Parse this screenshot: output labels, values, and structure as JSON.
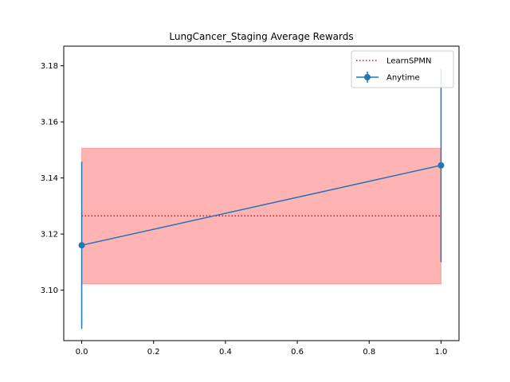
{
  "chart_data": {
    "type": "line",
    "title": "LungCancer_Staging Average Rewards",
    "xlabel": "",
    "ylabel": "",
    "xlim": [
      -0.05,
      1.05
    ],
    "ylim": [
      3.082,
      3.187
    ],
    "x_ticks": [
      "0.0",
      "0.2",
      "0.4",
      "0.6",
      "0.8",
      "1.0"
    ],
    "y_ticks": [
      "3.10",
      "3.12",
      "3.14",
      "3.16",
      "3.18"
    ],
    "legend_position": "top-right",
    "series": [
      {
        "name": "Anytime",
        "color": "#1f77b4",
        "x": [
          0.0,
          1.0
        ],
        "y": [
          3.116,
          3.1445
        ],
        "yerr": [
          0.0298,
          0.0345
        ]
      }
    ],
    "reference": {
      "name": "LearnSPMN",
      "color": "#ff0000",
      "style": "dotted",
      "x_range": [
        0.0,
        1.0
      ],
      "value": 3.1265,
      "band": [
        3.1022,
        3.1506
      ],
      "band_color": "#ff9999"
    }
  }
}
